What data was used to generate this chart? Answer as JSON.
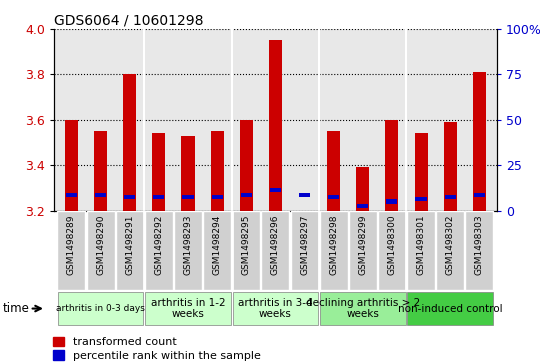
{
  "title": "GDS6064 / 10601298",
  "samples": [
    "GSM1498289",
    "GSM1498290",
    "GSM1498291",
    "GSM1498292",
    "GSM1498293",
    "GSM1498294",
    "GSM1498295",
    "GSM1498296",
    "GSM1498297",
    "GSM1498298",
    "GSM1498299",
    "GSM1498300",
    "GSM1498301",
    "GSM1498302",
    "GSM1498303"
  ],
  "red_values": [
    3.6,
    3.55,
    3.8,
    3.54,
    3.53,
    3.55,
    3.6,
    3.95,
    3.2,
    3.55,
    3.39,
    3.6,
    3.54,
    3.59,
    3.81
  ],
  "blue_values": [
    3.27,
    3.27,
    3.26,
    3.26,
    3.26,
    3.26,
    3.27,
    3.29,
    3.27,
    3.26,
    3.22,
    3.24,
    3.25,
    3.26,
    3.27
  ],
  "ymin": 3.2,
  "ymax": 4.0,
  "yticks": [
    3.2,
    3.4,
    3.6,
    3.8,
    4.0
  ],
  "y2ticks": [
    0,
    25,
    50,
    75,
    100
  ],
  "y2labels": [
    "0",
    "25",
    "50",
    "75",
    "100%"
  ],
  "groups": [
    {
      "label": "arthritis in 0-3 days",
      "start": 0,
      "end": 3,
      "color": "#ccffcc",
      "small_font": true
    },
    {
      "label": "arthritis in 1-2\nweeks",
      "start": 3,
      "end": 6,
      "color": "#ccffcc",
      "small_font": false
    },
    {
      "label": "arthritis in 3-4\nweeks",
      "start": 6,
      "end": 9,
      "color": "#ccffcc",
      "small_font": false
    },
    {
      "label": "declining arthritis > 2\nweeks",
      "start": 9,
      "end": 12,
      "color": "#99ee99",
      "small_font": false
    },
    {
      "label": "non-induced control",
      "start": 12,
      "end": 15,
      "color": "#44cc44",
      "small_font": false
    }
  ],
  "bar_color_red": "#cc0000",
  "bar_color_blue": "#0000cc",
  "bar_width": 0.45,
  "bg_color": "#e8e8e8",
  "sample_bg": "#d0d0d0",
  "legend_red": "transformed count",
  "legend_blue": "percentile rank within the sample"
}
